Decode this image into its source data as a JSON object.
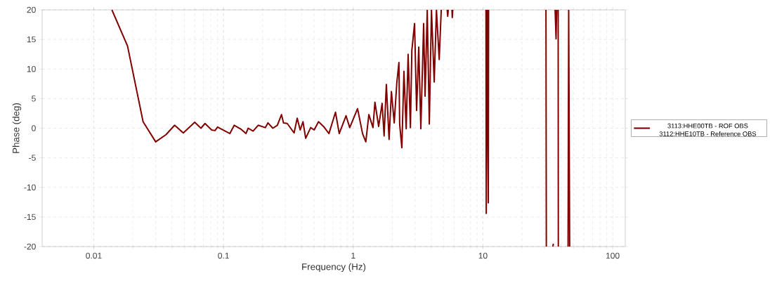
{
  "chart_data": {
    "type": "line",
    "xlabel": "Frequency (Hz)",
    "ylabel": "Phase (deg)",
    "log": "x",
    "grid": true,
    "legend": "right",
    "line_style": "solid",
    "marker": "none",
    "xlim": [
      0.004,
      125
    ],
    "ylim": [
      -20,
      20
    ],
    "xticks": [
      0.01,
      0.1,
      1,
      10,
      100
    ],
    "yticks": [
      -20,
      -15,
      -10,
      -5,
      0,
      5,
      10,
      15,
      20
    ],
    "series": [
      {
        "name": "3113:HHE00TB - ROF OBS 3112:HHE10TB - Reference OBS",
        "color": "#800000",
        "x": [
          0.0138,
          0.0182,
          0.024,
          0.03,
          0.036,
          0.042,
          0.049,
          0.06,
          0.067,
          0.072,
          0.081,
          0.086,
          0.09,
          0.112,
          0.121,
          0.137,
          0.149,
          0.155,
          0.169,
          0.185,
          0.21,
          0.22,
          0.24,
          0.26,
          0.28,
          0.29,
          0.31,
          0.35,
          0.37,
          0.39,
          0.41,
          0.43,
          0.47,
          0.5,
          0.54,
          0.59,
          0.65,
          0.73,
          0.78,
          0.88,
          0.94,
          1.08,
          1.18,
          1.25,
          1.32,
          1.42,
          1.47,
          1.57,
          1.67,
          1.73,
          1.8,
          1.89,
          1.97,
          2.07,
          2.17,
          2.25,
          2.28,
          2.37,
          2.46,
          2.56,
          2.65,
          2.76,
          2.83,
          2.97,
          3.08,
          3.2,
          3.32,
          3.49,
          3.58,
          3.72,
          3.86,
          4.01,
          4.21,
          4.38,
          4.6,
          4.77,
          5.0,
          5.3,
          5.35,
          5.4,
          5.6,
          5.77,
          5.8,
          5.85,
          8.0,
          10.55,
          10.6,
          10.8,
          11.0,
          11.05,
          20.0,
          30.6,
          30.8,
          33.0,
          34.6,
          34.9,
          35.0,
          36.0,
          36.6,
          37.0,
          37.5,
          38.0,
          38.1,
          40.0,
          45.3,
          45.8,
          46.6
        ],
        "values": [
          20,
          13.9,
          1.1,
          -2.3,
          -1.1,
          0.5,
          -0.8,
          1.0,
          0,
          0.8,
          -0.3,
          -0.4,
          0.2,
          -0.9,
          0.5,
          -0.2,
          -0.9,
          0,
          -0.5,
          0.5,
          0.1,
          0.9,
          0,
          0.5,
          2.3,
          0.9,
          0.8,
          -0.8,
          1.7,
          -0.3,
          1.1,
          -1.7,
          0.1,
          -0.3,
          1.1,
          0.3,
          -0.9,
          2.7,
          -0.9,
          2.1,
          0.1,
          3.3,
          -0.9,
          -2.3,
          2.3,
          0.1,
          4.4,
          0.3,
          4.2,
          -1.3,
          7.4,
          -1.9,
          6.2,
          0.9,
          7.8,
          11.1,
          0.7,
          -3.3,
          9.6,
          -0.1,
          12.5,
          0.1,
          13.1,
          17.7,
          3.0,
          13.7,
          -0.1,
          17.7,
          5.4,
          20,
          0.7,
          20,
          7.8,
          20,
          11.6,
          20,
          null,
          20,
          18.9,
          20,
          null,
          20,
          18.7,
          20,
          null,
          20,
          -14.4,
          20,
          -12.6,
          20,
          null,
          20,
          -20,
          null,
          -20,
          -19.5,
          null,
          20,
          15.1,
          20,
          null,
          20,
          -20,
          null,
          -20,
          20,
          -20
        ]
      }
    ]
  }
}
